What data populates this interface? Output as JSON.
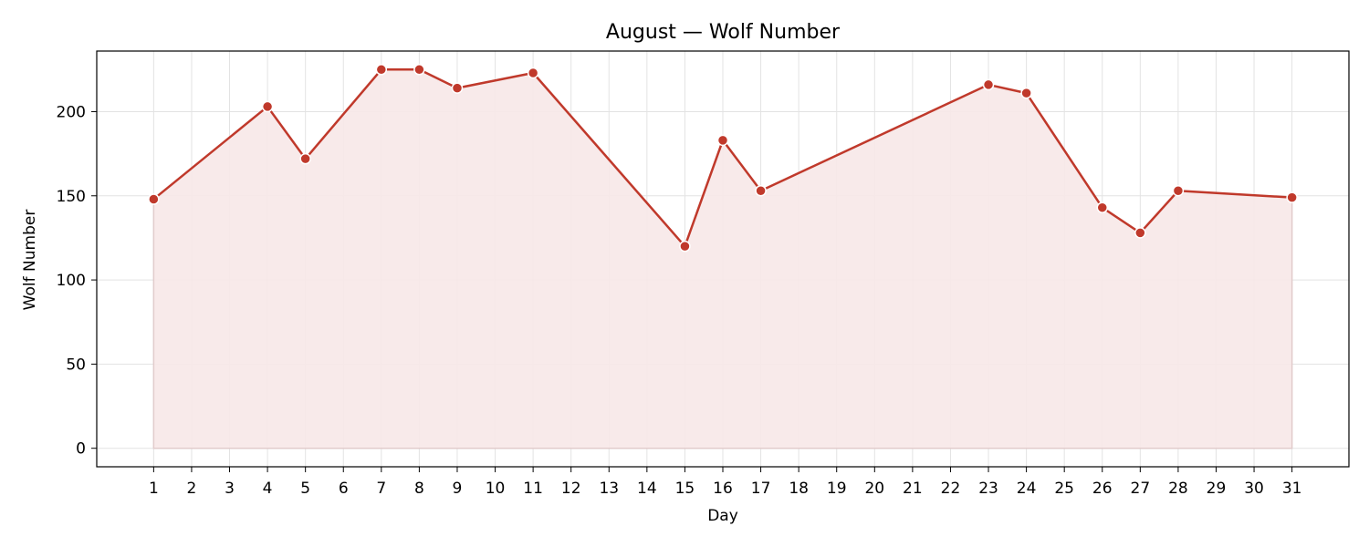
{
  "colors": {
    "line": "#c0392b",
    "marker_edge": "#ffffff",
    "area_fill": "#f7e8e8",
    "area_edge": "#e2cccc",
    "grid": "#e3e3e3",
    "axis": "#000000"
  },
  "chart_data": {
    "type": "area",
    "title": "August — Wolf Number",
    "xlabel": "Day",
    "ylabel": "Wolf Number",
    "x_ticks": [
      1,
      2,
      3,
      4,
      5,
      6,
      7,
      8,
      9,
      10,
      11,
      12,
      13,
      14,
      15,
      16,
      17,
      18,
      19,
      20,
      21,
      22,
      23,
      24,
      25,
      26,
      27,
      28,
      29,
      30,
      31
    ],
    "y_ticks": [
      0,
      50,
      100,
      150,
      200
    ],
    "xlim": [
      -0.5,
      32.5
    ],
    "ylim": [
      -11,
      236
    ],
    "grid": true,
    "series": [
      {
        "x": [
          1,
          4,
          5,
          7,
          8,
          9,
          11,
          15,
          16,
          17,
          23,
          24,
          26,
          27,
          28,
          31
        ],
        "y": [
          148,
          203,
          172,
          225,
          225,
          214,
          223,
          120,
          183,
          153,
          216,
          211,
          143,
          128,
          153,
          149
        ]
      }
    ]
  }
}
